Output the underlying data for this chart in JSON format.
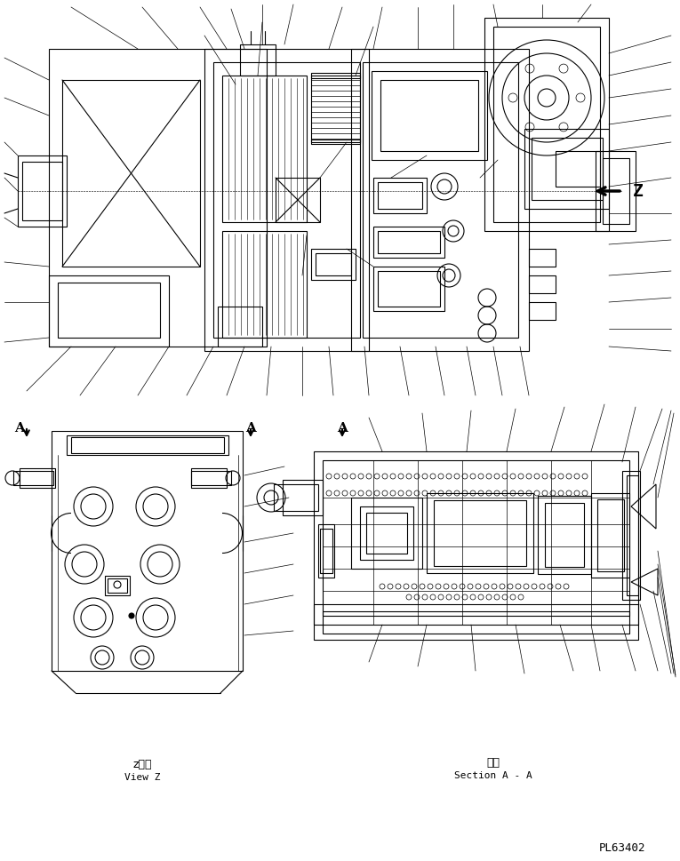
{
  "bg_color": "#ffffff",
  "line_color": "#000000",
  "page_id": "PL63402",
  "label_z_arrow": "Z",
  "label_view_z_jp": "z　視",
  "label_view_z_en": "View Z",
  "label_section_jp": "断面",
  "label_section_en": "Section A - A",
  "label_A": "A",
  "figsize": [
    7.65,
    9.69
  ],
  "dpi": 100,
  "lw_main": 0.8,
  "lw_thin": 0.5,
  "lw_leader": 0.5,
  "font_main": 9,
  "font_label": 8
}
